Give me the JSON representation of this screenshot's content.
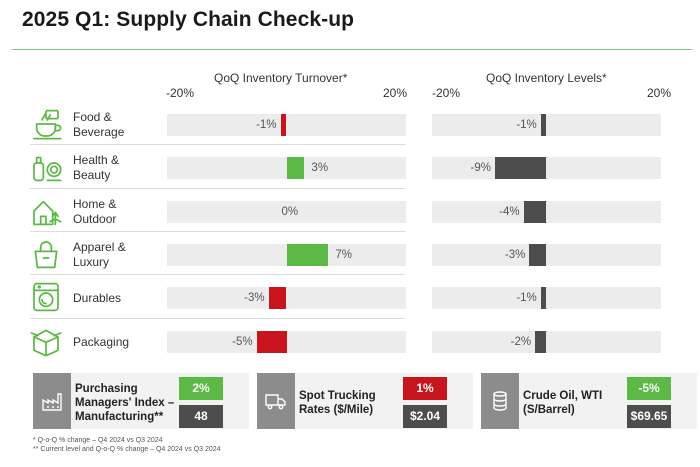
{
  "page": {
    "title": "2025 Q1: Supply Chain Check-up"
  },
  "colors": {
    "positive": "#5cb946",
    "negative": "#c8141d",
    "neutral": "#4d4d4d",
    "track": "#ececec",
    "icon": "#5cb946"
  },
  "categories": [
    {
      "label_line1": "Food &",
      "label_line2": "Beverage",
      "icon": "coffee-cup-icon"
    },
    {
      "label_line1": "Health &",
      "label_line2": "Beauty",
      "icon": "cosmetics-icon"
    },
    {
      "label_line1": "Home &",
      "label_line2": "Outdoor",
      "icon": "house-icon"
    },
    {
      "label_line1": "Apparel &",
      "label_line2": "Luxury",
      "icon": "handbag-icon"
    },
    {
      "label_line1": "Durables",
      "label_line2": "",
      "icon": "washing-machine-icon"
    },
    {
      "label_line1": "Packaging",
      "label_line2": "",
      "icon": "box-icon"
    }
  ],
  "chart_data": [
    {
      "type": "bar",
      "orientation": "horizontal",
      "title": "QoQ Inventory Turnover*",
      "xlim": [
        -20,
        20
      ],
      "tick_labels": [
        "-20%",
        "20%"
      ],
      "categories": [
        "Food & Beverage",
        "Health & Beauty",
        "Home & Outdoor",
        "Apparel & Luxury",
        "Durables",
        "Packaging"
      ],
      "values": [
        -1,
        3,
        0,
        7,
        -3,
        -5
      ],
      "value_labels": [
        "-1%",
        "3%",
        "0%",
        "7%",
        "-3%",
        "-5%"
      ]
    },
    {
      "type": "bar",
      "orientation": "horizontal",
      "title": "QoQ Inventory Levels*",
      "xlim": [
        -20,
        20
      ],
      "tick_labels": [
        "-20%",
        "20%"
      ],
      "categories": [
        "Food & Beverage",
        "Health & Beauty",
        "Home & Outdoor",
        "Apparel & Luxury",
        "Durables",
        "Packaging"
      ],
      "values": [
        -1,
        -9,
        -4,
        -3,
        -1,
        -2
      ],
      "value_labels": [
        "-1%",
        "-9%",
        "-4%",
        "-3%",
        "-1%",
        "-2%"
      ]
    }
  ],
  "indicators": [
    {
      "label_lines": [
        "Purchasing",
        "Managers' Index –",
        "Manufacturing**"
      ],
      "change": "2%",
      "change_sign": "positive",
      "value": "48",
      "icon": "factory-icon"
    },
    {
      "label_lines": [
        "Spot Trucking",
        "Rates ($/Mile)"
      ],
      "change": "1%",
      "change_sign": "negative",
      "value": "$2.04",
      "icon": "truck-icon"
    },
    {
      "label_lines": [
        "Crude Oil, WTI",
        "(S/Barrel)"
      ],
      "change": "-5%",
      "change_sign": "positive",
      "value": "$69.65",
      "icon": "oil-barrel-icon"
    }
  ],
  "footnotes": [
    "* Q-o-Q % change – Q4 2024 vs Q3 2024",
    "** Current level and Q-o-Q % change – Q4 2024 vs Q3 2024"
  ]
}
